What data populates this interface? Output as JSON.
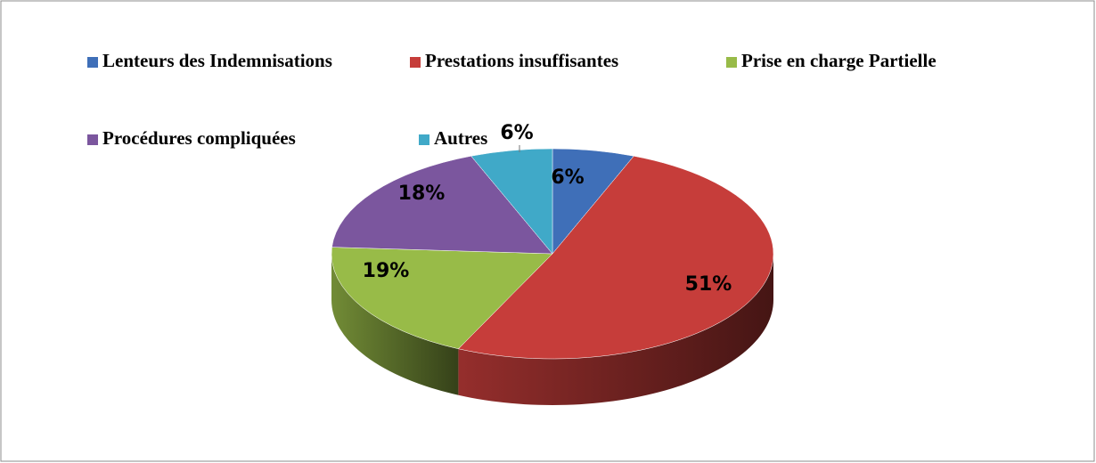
{
  "chart_data": {
    "type": "pie",
    "categories": [
      "Lenteurs des Indemnisations",
      "Prestations insuffisantes",
      "Prise en charge Partielle",
      "Procédures compliquées",
      "Autres"
    ],
    "values": [
      6,
      51,
      19,
      18,
      6
    ],
    "value_labels": [
      "6%",
      "51%",
      "19%",
      "18%",
      "6%"
    ],
    "colors": [
      "#3f6fb8",
      "#c63d3a",
      "#98bb48",
      "#7b569e",
      "#40a9c8"
    ],
    "legend": "top"
  }
}
